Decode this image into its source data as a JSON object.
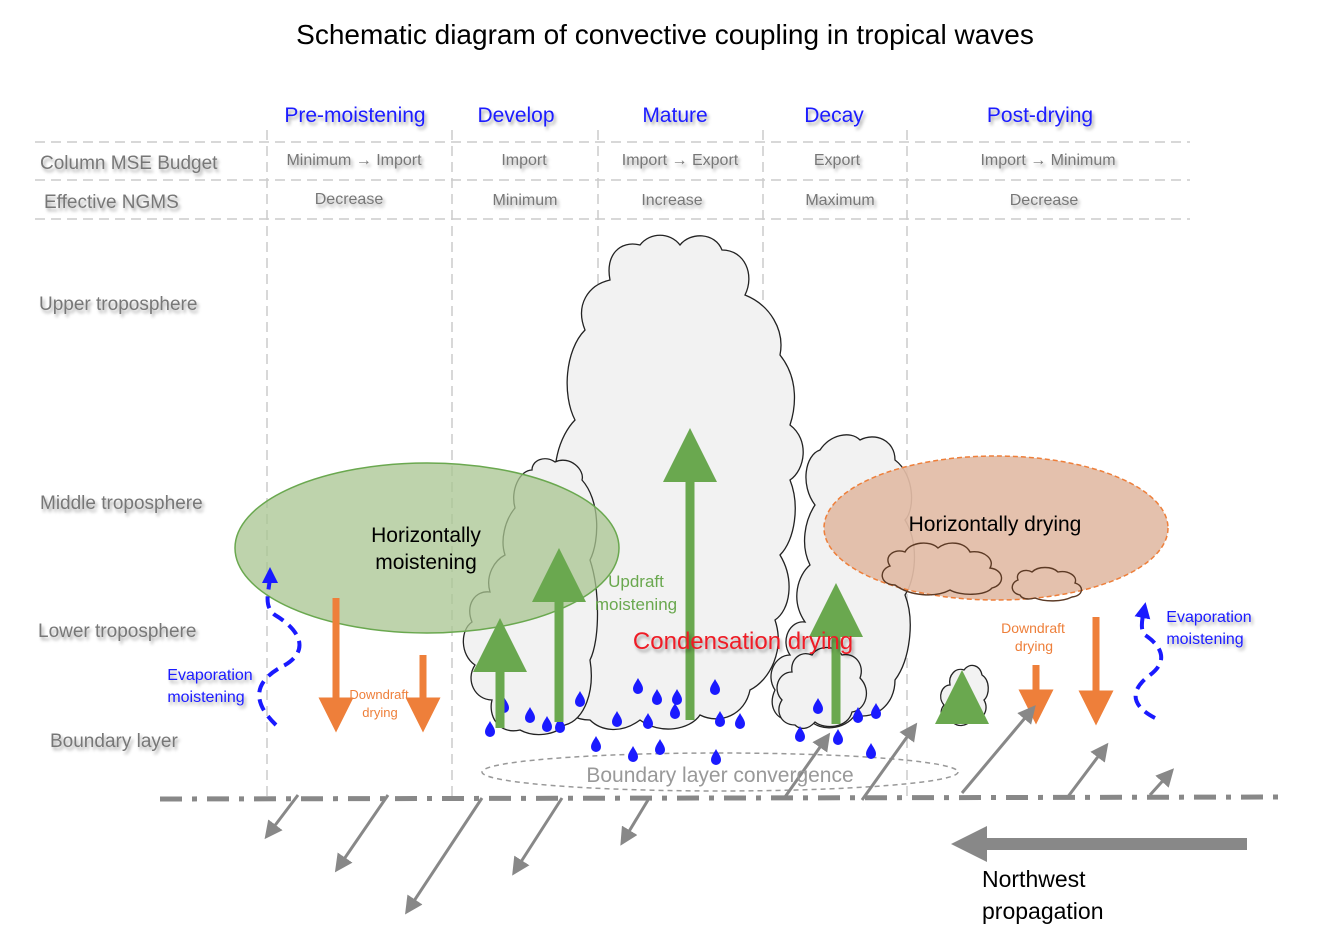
{
  "title": "Schematic diagram of convective coupling in tropical waves",
  "colors": {
    "phase_blue": "#1a1aff",
    "row_gray": "#777777",
    "green": "#6aa84f",
    "green_ellipse": "#b7cfa4",
    "orange": "#ee7f3a",
    "brown_ellipse": "#e2bca6",
    "red": "#ee1c25",
    "rain_blue": "#1a1aff",
    "wind_gray": "#888888"
  },
  "phases": [
    "Pre-moistening",
    "Develop",
    "Mature",
    "Decay",
    "Post-drying"
  ],
  "rows": [
    {
      "label": "Column MSE Budget",
      "values": [
        "Minimum → Import",
        "Import",
        "Import → Export",
        "Export",
        "Import → Minimum"
      ]
    },
    {
      "label": "Effective NGMS",
      "values": [
        "Decrease",
        "Minimum",
        "Increase",
        "Maximum",
        "Decrease"
      ]
    }
  ],
  "levels": [
    "Upper troposphere",
    "Middle troposphere",
    "Lower troposphere",
    "Boundary layer"
  ],
  "annotations": {
    "horizontally_moistening": [
      "Horizontally",
      "moistening"
    ],
    "horizontally_drying": "Horizontally drying",
    "updraft_moistening": [
      "Updraft",
      "moistening"
    ],
    "condensation_drying": "Condensation drying",
    "evaporation_moistening_left": [
      "Evaporation",
      "moistening"
    ],
    "evaporation_moistening_right": [
      "Evaporation",
      "moistening"
    ],
    "downdraft_drying_left": [
      "Downdraft",
      "drying"
    ],
    "downdraft_drying_right": [
      "Downdraft",
      "drying"
    ],
    "boundary_layer_convergence": "Boundary layer convergence",
    "propagation": [
      "Northwest",
      "propagation"
    ]
  },
  "icons": [
    "cloud-icon",
    "raindrop-icon",
    "arrow-icon"
  ]
}
